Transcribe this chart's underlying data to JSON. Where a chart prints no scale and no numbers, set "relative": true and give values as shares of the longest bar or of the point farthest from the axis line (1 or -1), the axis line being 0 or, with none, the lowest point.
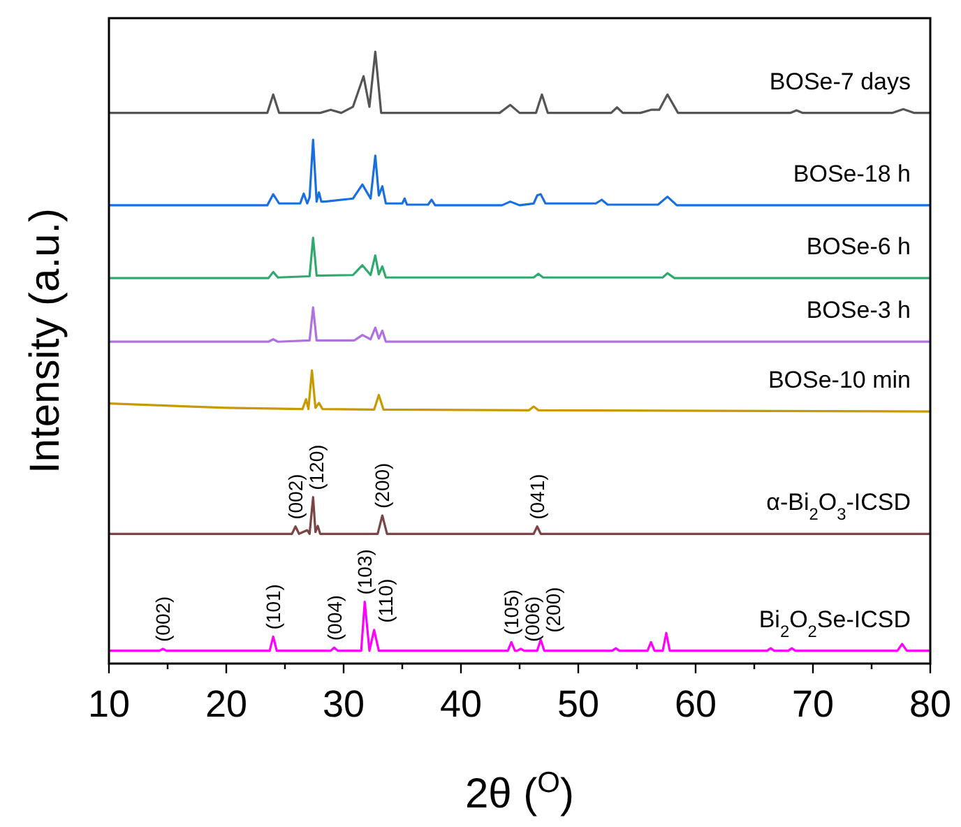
{
  "chart_data": {
    "type": "line",
    "relative": true,
    "xlabel": "2θ ($^{O}$)",
    "ylabel": "Intensity (a.u.)",
    "xlim": [
      10,
      80
    ],
    "xticks": [
      10,
      {
        "value": 15,
        "label": null
      },
      20,
      {
        "value": 25,
        "label": null
      },
      30,
      {
        "value": 35,
        "label": null
      },
      40,
      {
        "value": 45,
        "label": null
      },
      50,
      {
        "value": 55,
        "label": null
      },
      60,
      {
        "value": 65,
        "label": null
      },
      70,
      {
        "value": 75,
        "label": null
      },
      80
    ],
    "tick_labels": "x",
    "legend": false,
    "grid": false,
    "marker": "none",
    "line_style": "solid",
    "series": [
      {
        "name": "BOSe-7 days",
        "color": "#555555",
        "x": [
          10,
          23.5,
          24,
          24.5,
          28,
          28.9,
          29.8,
          30.8,
          31.7,
          32.2,
          32.7,
          33.2,
          43.3,
          44.2,
          45,
          46.4,
          46.9,
          47.4,
          52.8,
          53.3,
          53.8,
          55.3,
          56.2,
          56.9,
          57.6,
          58.5,
          68.1,
          68.6,
          69.1,
          76.8,
          77.7,
          78.6,
          80
        ],
        "values": [
          0.9,
          0.9,
          0.93,
          0.9,
          0.9,
          0.905,
          0.9,
          0.91,
          0.96,
          0.91,
          1.0,
          0.9,
          0.9,
          0.913,
          0.9,
          0.9,
          0.93,
          0.9,
          0.9,
          0.909,
          0.9,
          0.9,
          0.905,
          0.905,
          0.93,
          0.9,
          0.9,
          0.904,
          0.9,
          0.9,
          0.906,
          0.9,
          0.9
        ]
      },
      {
        "name": "BOSe-18 h",
        "color": "#1a6fe0",
        "x": [
          10,
          23.5,
          24,
          24.5,
          26.3,
          26.6,
          26.9,
          27.1,
          27.4,
          27.7,
          27.9,
          28.1,
          28.4,
          30.8,
          31.6,
          32.3,
          32.7,
          33.0,
          33.3,
          33.6,
          35,
          35.2,
          35.4,
          37.2,
          37.5,
          37.8,
          43.5,
          44.2,
          45,
          46.2,
          46.5,
          46.8,
          47.2,
          51.5,
          52,
          52.5,
          56.8,
          57.6,
          58.4,
          80
        ],
        "values": [
          0.749,
          0.749,
          0.767,
          0.752,
          0.752,
          0.768,
          0.752,
          0.762,
          0.856,
          0.755,
          0.77,
          0.755,
          0.755,
          0.76,
          0.783,
          0.76,
          0.83,
          0.765,
          0.78,
          0.752,
          0.752,
          0.76,
          0.75,
          0.75,
          0.758,
          0.749,
          0.749,
          0.755,
          0.749,
          0.752,
          0.765,
          0.767,
          0.752,
          0.752,
          0.758,
          0.75,
          0.75,
          0.763,
          0.749,
          0.749
        ]
      },
      {
        "name": "BOSe-6 h",
        "color": "#2eaa6e",
        "x": [
          10,
          23.6,
          24,
          24.4,
          27.1,
          27.4,
          27.7,
          30.8,
          31.6,
          32.3,
          32.7,
          33.0,
          33.3,
          33.6,
          46.2,
          46.6,
          47,
          57.2,
          57.6,
          58.2,
          80
        ],
        "values": [
          0.63,
          0.63,
          0.64,
          0.631,
          0.633,
          0.696,
          0.634,
          0.635,
          0.651,
          0.635,
          0.667,
          0.636,
          0.649,
          0.631,
          0.631,
          0.637,
          0.631,
          0.631,
          0.638,
          0.63,
          0.63
        ]
      },
      {
        "name": "BOSe-3 h",
        "color": "#b070e0",
        "x": [
          10,
          23.6,
          24,
          24.4,
          27.1,
          27.4,
          27.7,
          30.9,
          31.6,
          32.3,
          32.7,
          33.0,
          33.3,
          33.6,
          80
        ],
        "values": [
          0.526,
          0.526,
          0.53,
          0.526,
          0.528,
          0.582,
          0.528,
          0.528,
          0.537,
          0.53,
          0.549,
          0.531,
          0.544,
          0.526,
          0.526
        ]
      },
      {
        "name": "BOSe-10 min",
        "color": "#c99a00",
        "x": [
          10,
          20,
          26.5,
          26.8,
          27.0,
          27.3,
          27.6,
          27.9,
          28.2,
          32.6,
          33.0,
          33.4,
          45.8,
          46.2,
          46.6,
          80
        ],
        "values": [
          0.425,
          0.418,
          0.416,
          0.432,
          0.416,
          0.479,
          0.418,
          0.426,
          0.416,
          0.415,
          0.439,
          0.415,
          0.414,
          0.42,
          0.414,
          0.412
        ]
      },
      {
        "name": "α-Bi$_{2}$O$_{3}$-ICSD",
        "color": "#7b4545",
        "x": [
          10,
          25.6,
          25.9,
          26.2,
          26.9,
          27.1,
          27.4,
          27.6,
          27.8,
          28.0,
          32.9,
          33.3,
          33.7,
          46.2,
          46.5,
          46.8,
          80
        ],
        "values": [
          0.212,
          0.212,
          0.224,
          0.212,
          0.218,
          0.212,
          0.272,
          0.215,
          0.225,
          0.212,
          0.212,
          0.242,
          0.212,
          0.212,
          0.224,
          0.212,
          0.212
        ]
      },
      {
        "name": "Bi$_{2}$O$_{2}$Se-ICSD",
        "color": "#ff00ff",
        "x": [
          10,
          14.3,
          14.6,
          14.9,
          23.7,
          24,
          24.3,
          28.9,
          29.2,
          29.5,
          31.5,
          31.8,
          32.2,
          32.6,
          33,
          44,
          44.3,
          44.6,
          44.8,
          45.1,
          45.4,
          46.5,
          46.8,
          47.1,
          52.9,
          53.2,
          53.5,
          55.9,
          56.2,
          56.5,
          57.2,
          57.5,
          57.8,
          66.1,
          66.4,
          66.7,
          67.9,
          68.2,
          68.5,
          77.2,
          77.6,
          78,
          80
        ],
        "values": [
          0.021,
          0.021,
          0.024,
          0.021,
          0.021,
          0.044,
          0.021,
          0.021,
          0.026,
          0.021,
          0.021,
          0.101,
          0.021,
          0.055,
          0.021,
          0.021,
          0.035,
          0.021,
          0.021,
          0.024,
          0.021,
          0.021,
          0.039,
          0.021,
          0.021,
          0.025,
          0.021,
          0.021,
          0.035,
          0.021,
          0.021,
          0.05,
          0.021,
          0.021,
          0.025,
          0.021,
          0.021,
          0.025,
          0.021,
          0.021,
          0.032,
          0.021,
          0.021
        ]
      }
    ],
    "annotations": [
      {
        "text": "(002)",
        "x": 25.9,
        "y": 0.224
      },
      {
        "text": "(120)",
        "x": 27.4,
        "y": 0.272
      },
      {
        "text": "(200)",
        "x": 33.3,
        "y": 0.242
      },
      {
        "text": "(041)",
        "x": 46.5,
        "y": 0.224
      },
      {
        "text": "(002)",
        "x": 14.6,
        "y": 0.024
      },
      {
        "text": "(101)",
        "x": 24,
        "y": 0.044
      },
      {
        "text": "(004)",
        "x": 29.2,
        "y": 0.026
      },
      {
        "text": "(103)",
        "x": 31.8,
        "y": 0.101
      },
      {
        "text": "(110)",
        "x": 32.6,
        "y": 0.055
      },
      {
        "text": "(105)",
        "x": 44.3,
        "y": 0.035
      },
      {
        "text": "(006)",
        "x": 45.1,
        "y": 0.024
      },
      {
        "text": "(200)",
        "x": 46.8,
        "y": 0.039
      }
    ]
  }
}
